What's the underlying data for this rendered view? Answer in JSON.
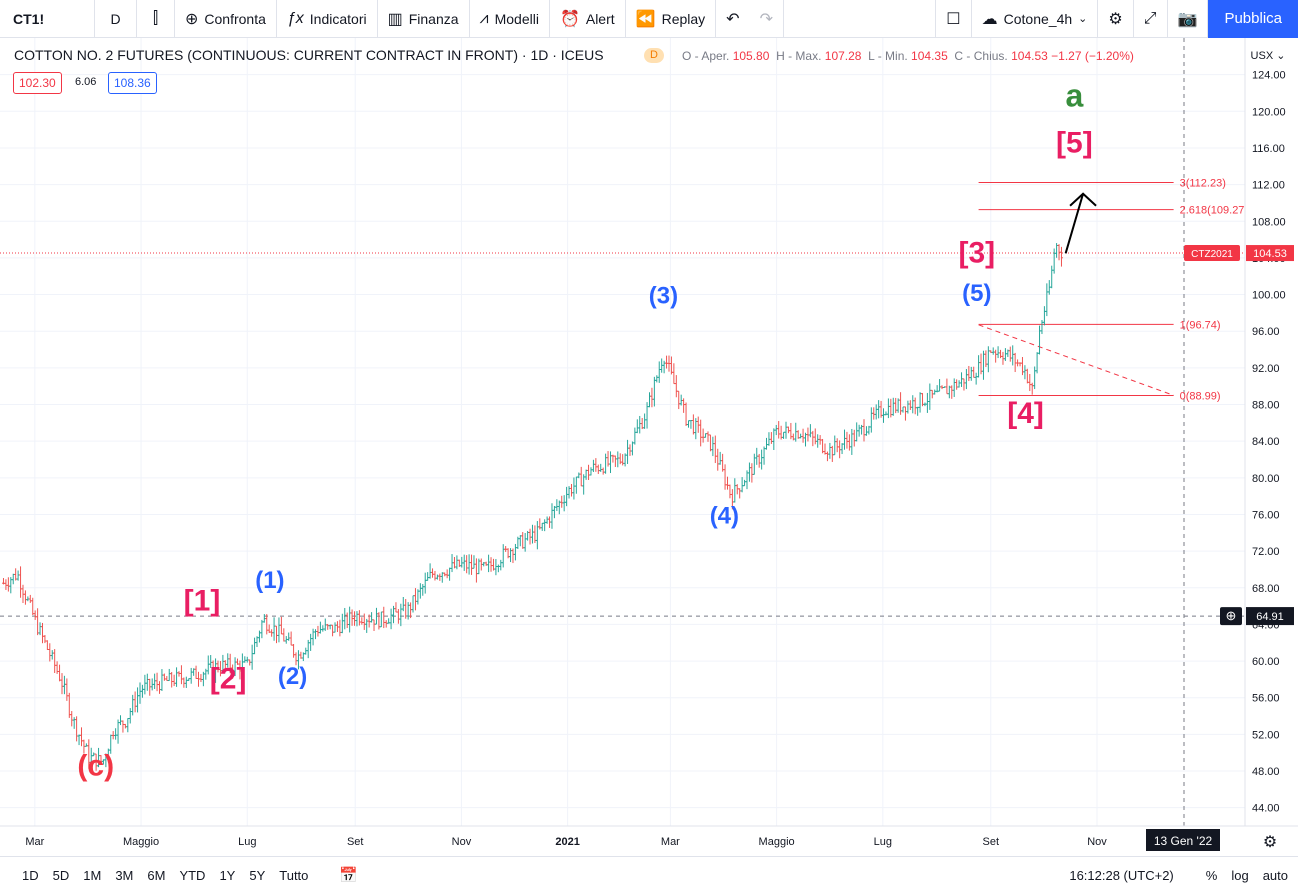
{
  "toolbar": {
    "symbol": "CT1!",
    "interval": "D",
    "compare": "Confronta",
    "indicators": "Indicatori",
    "financials": "Finanza",
    "templates": "Modelli",
    "alert": "Alert",
    "replay": "Replay",
    "layout_name": "Cotone_4h",
    "publish": "Pubblica"
  },
  "legend": {
    "title": "COTTON NO. 2 FUTURES (CONTINUOUS: CURRENT CONTRACT IN FRONT) · 1D · ICEUS",
    "badge": "D",
    "open_label": "O - Aper.",
    "open": "105.80",
    "high_label": "H - Max.",
    "high": "107.28",
    "low_label": "L - Min.",
    "low": "104.35",
    "close_label": "C - Chius.",
    "close": "104.53",
    "change": "−1.27 (−1.20%)",
    "bid": "102.30",
    "spread": "6.06",
    "ask": "108.36"
  },
  "price_scale": {
    "currency": "USX",
    "ticks": [
      "124.00",
      "120.00",
      "116.00",
      "112.00",
      "108.00",
      "104.00",
      "100.00",
      "96.00",
      "92.00",
      "88.00",
      "84.00",
      "80.00",
      "76.00",
      "72.00",
      "68.00",
      "64.00",
      "60.00",
      "56.00",
      "52.00",
      "48.00",
      "44.00"
    ],
    "last_label": "CTZ2021",
    "last_value": "104.53",
    "crosshair_value": "64.91"
  },
  "time_scale": {
    "ticks": [
      "Mar",
      "Maggio",
      "Lug",
      "Set",
      "Nov",
      "2021",
      "Mar",
      "Maggio",
      "Lug",
      "Set",
      "Nov"
    ],
    "crosshair_date": "13 Gen '22"
  },
  "chart_data": {
    "type": "candlestick",
    "title": "COTTON NO. 2 FUTURES (CONTINUOUS: CURRENT CONTRACT IN FRONT)",
    "xlabel": "",
    "ylabel": "",
    "ylim": [
      42,
      128
    ],
    "x_range": [
      "2020-02-10",
      "2022-01-25"
    ],
    "grid": true,
    "series": [
      {
        "name": "CT1!",
        "x": [
          "2020-02-12",
          "2020-02-20",
          "2020-03-02",
          "2020-03-09",
          "2020-03-16",
          "2020-03-23",
          "2020-04-01",
          "2020-04-09",
          "2020-04-15",
          "2020-04-22",
          "2020-05-01",
          "2020-05-15",
          "2020-06-01",
          "2020-06-15",
          "2020-07-01",
          "2020-07-10",
          "2020-07-20",
          "2020-07-30",
          "2020-08-10",
          "2020-08-20",
          "2020-09-01",
          "2020-09-15",
          "2020-10-01",
          "2020-10-15",
          "2020-11-01",
          "2020-11-15",
          "2020-12-01",
          "2020-12-15",
          "2021-01-01",
          "2021-01-15",
          "2021-02-01",
          "2021-02-15",
          "2021-02-25",
          "2021-03-10",
          "2021-03-25",
          "2021-04-05",
          "2021-04-15",
          "2021-05-01",
          "2021-05-15",
          "2021-06-01",
          "2021-06-15",
          "2021-07-01",
          "2021-07-15",
          "2021-08-01",
          "2021-08-15",
          "2021-08-25",
          "2021-09-01",
          "2021-09-10",
          "2021-09-20",
          "2021-09-25",
          "2021-09-29",
          "2021-10-05",
          "2021-10-08",
          "2021-10-12"
        ],
        "close": [
          68.5,
          69.5,
          64.0,
          61.0,
          58.0,
          53.5,
          49.5,
          49.0,
          52.5,
          53.5,
          57.0,
          57.8,
          58.5,
          59.5,
          59.5,
          64.5,
          63.0,
          60.5,
          63.5,
          63.5,
          65.0,
          64.5,
          65.5,
          69.5,
          70.5,
          70.0,
          72.5,
          74.0,
          78.5,
          81.0,
          82.0,
          87.0,
          93.5,
          86.5,
          83.5,
          78.0,
          80.5,
          85.0,
          85.0,
          83.0,
          84.5,
          87.5,
          88.0,
          89.0,
          90.5,
          92.0,
          94.0,
          93.5,
          92.0,
          89.5,
          96.0,
          101.0,
          105.5,
          104.53
        ]
      }
    ],
    "wave_labels": [
      {
        "text": "(c)",
        "color": "#f23645"
      },
      {
        "text": "[1]",
        "color": "#e91e63"
      },
      {
        "text": "(1)",
        "color": "#2962ff"
      },
      {
        "text": "[2]",
        "color": "#e91e63"
      },
      {
        "text": "(2)",
        "color": "#2962ff"
      },
      {
        "text": "(3)",
        "color": "#2962ff"
      },
      {
        "text": "(4)",
        "color": "#2962ff"
      },
      {
        "text": "[3]",
        "color": "#e91e63"
      },
      {
        "text": "(5)",
        "color": "#2962ff"
      },
      {
        "text": "[4]",
        "color": "#e91e63"
      },
      {
        "text": "[5]",
        "color": "#e91e63"
      },
      {
        "text": "a",
        "color": "#388e3c"
      }
    ],
    "fib_levels": [
      {
        "label": "3(112.23)",
        "value": 112.23
      },
      {
        "label": "2.618(109.27)",
        "value": 109.27
      },
      {
        "label": "1(96.74)",
        "value": 96.74
      },
      {
        "label": "0(88.99)",
        "value": 88.99
      }
    ],
    "trendline": {
      "from": [
        "2021-08-25",
        96.7
      ],
      "to": [
        "2021-12-15",
        89.0
      ]
    },
    "arrow": {
      "from": [
        "2021-10-14",
        104.5
      ],
      "to": [
        "2021-10-24",
        111.0
      ]
    },
    "horizontal_line": 64.91,
    "last_price_line": 104.53,
    "colors": {
      "up": "#26a69a",
      "down": "#ef5350",
      "fib": "#f23645",
      "arrow": "#000000"
    }
  },
  "bottombar": {
    "ranges": [
      "1D",
      "5D",
      "1M",
      "3M",
      "6M",
      "YTD",
      "1Y",
      "5Y",
      "Tutto"
    ],
    "clock": "16:12:28 (UTC+2)",
    "percent": "%",
    "log": "log",
    "auto": "auto"
  }
}
